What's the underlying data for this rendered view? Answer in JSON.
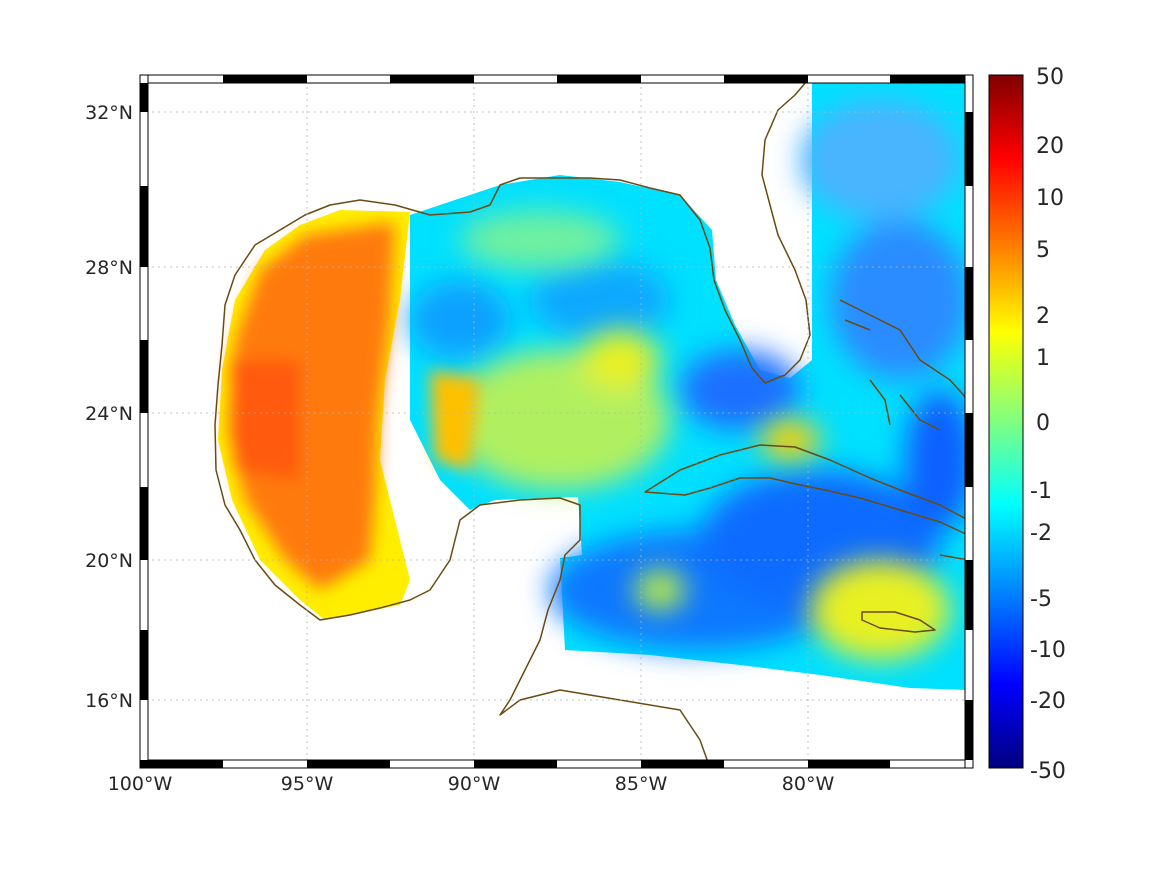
{
  "map": {
    "lon_ticks": [
      "100°W",
      "95°W",
      "90°W",
      "85°W",
      "80°W"
    ],
    "lat_ticks": [
      "32°N",
      "28°N",
      "24°N",
      "20°N",
      "16°N"
    ]
  },
  "colorbar": {
    "labels": [
      "50",
      "20",
      "10",
      "5",
      "2",
      "1",
      "0",
      "-1",
      "-2",
      "-5",
      "-10",
      "-20",
      "-50"
    ],
    "colors": [
      "#800000",
      "#ff0000",
      "#ff8000",
      "#ffff00",
      "#80ff80",
      "#00ffff",
      "#0080ff",
      "#0000ff",
      "#000080"
    ]
  },
  "colors": {
    "coastline": "#6b4a12",
    "land": "#ffffff",
    "western_gulf": "#ff7a10",
    "central_gulf": "#ffee00",
    "eastern_gulf": "#00e0ff",
    "caribbean": "#0a78ff"
  }
}
